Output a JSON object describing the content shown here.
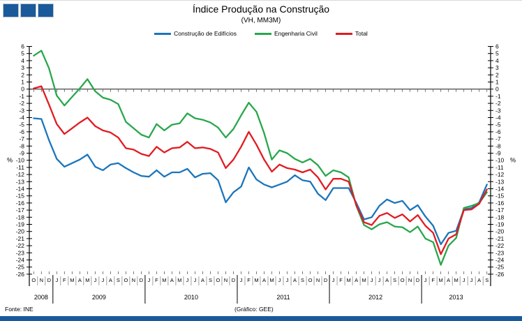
{
  "header": {
    "title": "Índice Produção na Construção",
    "subtitle": "(VH, MM3M)"
  },
  "logo": {
    "color": "#1A5A9A",
    "squares": 3
  },
  "accent_bar_color": "#1A5A9A",
  "footer": {
    "source": "Fonte:  INE",
    "credit": "(Gráfico:  GEE)"
  },
  "chart_data": {
    "type": "line",
    "title": "Índice Produção na Construção",
    "subtitle": "(VH, MM3M)",
    "ylabel_left": "%",
    "ylabel_right": "%",
    "ylim": [
      -26,
      6
    ],
    "ytick_step": 1,
    "grid": "zero-line-only",
    "legend_position": "top-center",
    "x_months": [
      "O",
      "N",
      "D",
      "J",
      "F",
      "M",
      "A",
      "M",
      "J",
      "J",
      "A",
      "S",
      "O",
      "N",
      "D",
      "J",
      "F",
      "M",
      "A",
      "M",
      "J",
      "J",
      "A",
      "S",
      "O",
      "N",
      "D",
      "J",
      "F",
      "M",
      "A",
      "M",
      "J",
      "J",
      "A",
      "S",
      "O",
      "N",
      "D",
      "J",
      "F",
      "M",
      "A",
      "M",
      "J",
      "J",
      "A",
      "S",
      "O",
      "N",
      "D",
      "J",
      "F",
      "M",
      "A",
      "M",
      "J",
      "J",
      "A",
      "S"
    ],
    "years": [
      {
        "label": "2008",
        "start": 0,
        "end": 2
      },
      {
        "label": "2009",
        "start": 3,
        "end": 14
      },
      {
        "label": "2010",
        "start": 15,
        "end": 26
      },
      {
        "label": "2011",
        "start": 27,
        "end": 38
      },
      {
        "label": "2012",
        "start": 39,
        "end": 50
      },
      {
        "label": "2013",
        "start": 51,
        "end": 59
      }
    ],
    "series": [
      {
        "name": "Construção de Edifícios",
        "color": "#1B75BC",
        "values": [
          -4.1,
          -4.2,
          -7.2,
          -9.8,
          -10.9,
          -10.4,
          -9.9,
          -9.2,
          -10.9,
          -11.4,
          -10.6,
          -10.4,
          -11.1,
          -11.7,
          -12.2,
          -12.3,
          -11.4,
          -12.3,
          -11.7,
          -11.7,
          -11.2,
          -12.4,
          -11.9,
          -11.8,
          -12.8,
          -15.9,
          -14.5,
          -13.7,
          -11.0,
          -12.7,
          -13.4,
          -13.8,
          -13.4,
          -13.0,
          -12.1,
          -12.8,
          -13.0,
          -14.7,
          -15.6,
          -13.9,
          -13.9,
          -13.9,
          -16.0,
          -18.3,
          -18.0,
          -16.4,
          -15.5,
          -16.0,
          -15.7,
          -17.0,
          -16.3,
          -17.9,
          -19.2,
          -21.8,
          -20.2,
          -19.9,
          -16.9,
          -16.7,
          -15.9,
          -13.4
        ]
      },
      {
        "name": "Engenharia Civil",
        "color": "#28A74B",
        "values": [
          4.7,
          5.4,
          2.9,
          -0.9,
          -2.3,
          -1.1,
          0.1,
          1.4,
          -0.3,
          -1.2,
          -1.5,
          -2.1,
          -4.6,
          -5.5,
          -6.4,
          -6.8,
          -4.9,
          -5.8,
          -5.0,
          -4.8,
          -3.4,
          -4.1,
          -4.3,
          -4.7,
          -5.4,
          -6.8,
          -5.6,
          -3.7,
          -1.9,
          -3.2,
          -6.2,
          -9.9,
          -8.6,
          -9.0,
          -9.8,
          -10.3,
          -9.8,
          -10.7,
          -12.2,
          -11.4,
          -11.7,
          -12.4,
          -16.4,
          -19.1,
          -19.7,
          -19.0,
          -18.7,
          -19.3,
          -19.4,
          -20.1,
          -19.3,
          -21.0,
          -21.5,
          -24.7,
          -22.0,
          -20.9,
          -16.7,
          -16.4,
          -16.0,
          -14.5
        ]
      },
      {
        "name": "Total",
        "color": "#E21B22",
        "values": [
          0.1,
          0.4,
          -2.2,
          -4.9,
          -6.3,
          -5.5,
          -4.7,
          -4.0,
          -5.2,
          -5.8,
          -6.1,
          -6.8,
          -8.3,
          -8.5,
          -9.1,
          -9.4,
          -8.1,
          -8.9,
          -8.3,
          -8.2,
          -7.4,
          -8.3,
          -8.2,
          -8.4,
          -8.9,
          -11.1,
          -9.9,
          -8.1,
          -6.0,
          -7.8,
          -9.9,
          -11.6,
          -10.6,
          -11.1,
          -11.3,
          -11.7,
          -11.3,
          -12.4,
          -14.1,
          -12.6,
          -12.6,
          -13.0,
          -16.3,
          -18.7,
          -19.1,
          -17.8,
          -17.4,
          -18.1,
          -17.6,
          -18.6,
          -17.7,
          -19.2,
          -20.2,
          -23.2,
          -21.0,
          -20.4,
          -17.0,
          -16.9,
          -16.1,
          -14.1
        ]
      }
    ]
  }
}
